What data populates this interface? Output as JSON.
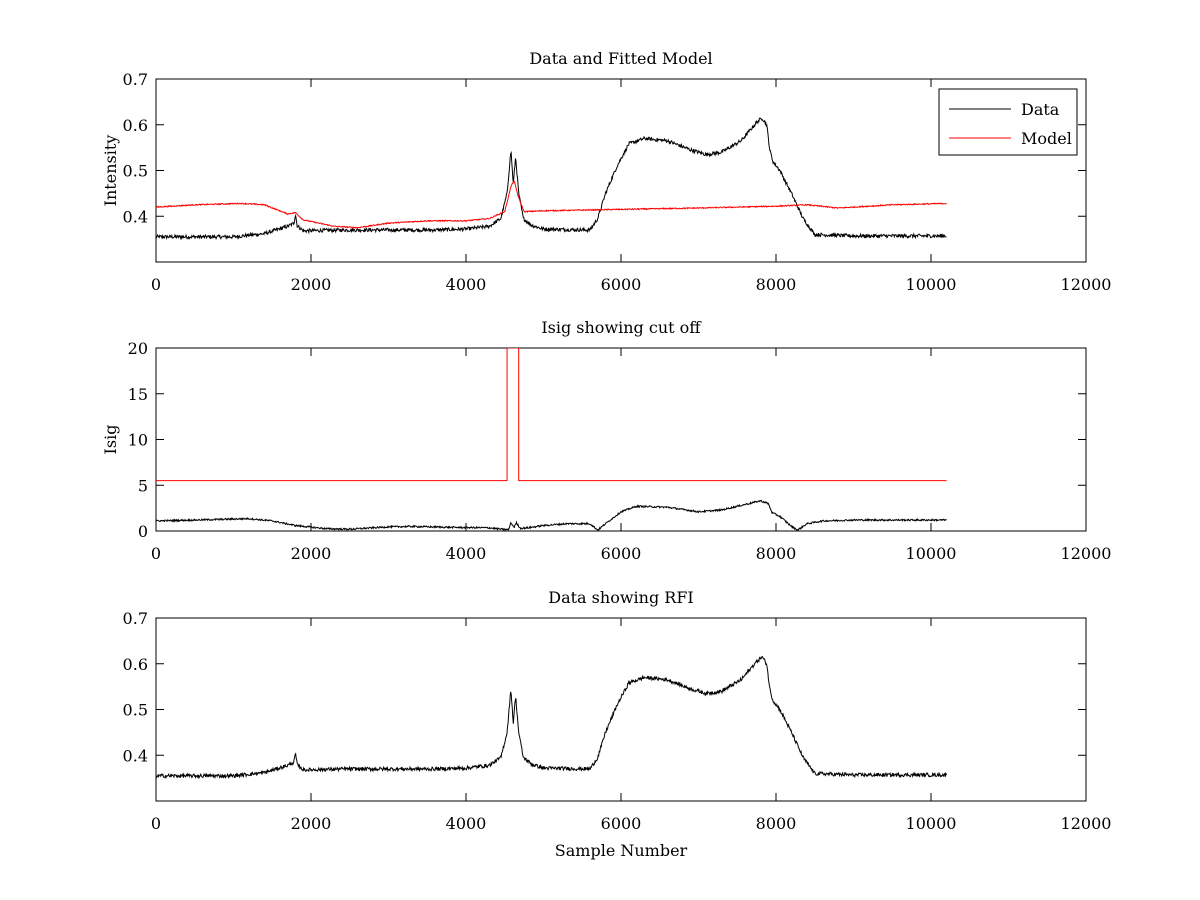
{
  "chart_data": [
    {
      "type": "line",
      "title": "Data and Fitted Model",
      "xlabel": "",
      "ylabel": "Intensity",
      "xlim": [
        0,
        12000
      ],
      "ylim": [
        0.3,
        0.7
      ],
      "xticks": [
        0,
        2000,
        4000,
        6000,
        8000,
        10000,
        12000
      ],
      "yticks": [
        0.4,
        0.5,
        0.6,
        0.7
      ],
      "ytick_labels": [
        "0.4",
        "0.5",
        "0.6",
        "0.7"
      ],
      "grid": false,
      "legend": "top-right",
      "series": [
        {
          "name": "Data",
          "color": "#000000",
          "noise": 0.004,
          "points": [
            [
              0,
              0.355
            ],
            [
              1000,
              0.355
            ],
            [
              1400,
              0.362
            ],
            [
              1700,
              0.378
            ],
            [
              1780,
              0.385
            ],
            [
              1800,
              0.405
            ],
            [
              1820,
              0.38
            ],
            [
              1900,
              0.368
            ],
            [
              2400,
              0.37
            ],
            [
              3000,
              0.37
            ],
            [
              3600,
              0.37
            ],
            [
              4000,
              0.372
            ],
            [
              4300,
              0.378
            ],
            [
              4450,
              0.395
            ],
            [
              4530,
              0.45
            ],
            [
              4580,
              0.545
            ],
            [
              4610,
              0.47
            ],
            [
              4640,
              0.53
            ],
            [
              4680,
              0.45
            ],
            [
              4740,
              0.395
            ],
            [
              4850,
              0.38
            ],
            [
              5000,
              0.372
            ],
            [
              5600,
              0.37
            ],
            [
              5700,
              0.395
            ],
            [
              5800,
              0.45
            ],
            [
              5950,
              0.51
            ],
            [
              6100,
              0.558
            ],
            [
              6300,
              0.57
            ],
            [
              6600,
              0.565
            ],
            [
              6900,
              0.545
            ],
            [
              7100,
              0.535
            ],
            [
              7300,
              0.54
            ],
            [
              7550,
              0.565
            ],
            [
              7750,
              0.605
            ],
            [
              7820,
              0.615
            ],
            [
              7880,
              0.6
            ],
            [
              7920,
              0.545
            ],
            [
              7960,
              0.52
            ],
            [
              8050,
              0.5
            ],
            [
              8200,
              0.45
            ],
            [
              8350,
              0.395
            ],
            [
              8500,
              0.36
            ],
            [
              9000,
              0.357
            ],
            [
              10200,
              0.357
            ]
          ]
        },
        {
          "name": "Model",
          "color": "#ff0000",
          "noise": 0.0012,
          "points": [
            [
              0,
              0.42
            ],
            [
              500,
              0.425
            ],
            [
              1100,
              0.428
            ],
            [
              1400,
              0.425
            ],
            [
              1700,
              0.405
            ],
            [
              1800,
              0.408
            ],
            [
              1900,
              0.392
            ],
            [
              2300,
              0.378
            ],
            [
              2600,
              0.375
            ],
            [
              3000,
              0.385
            ],
            [
              3500,
              0.39
            ],
            [
              4000,
              0.39
            ],
            [
              4300,
              0.395
            ],
            [
              4500,
              0.41
            ],
            [
              4580,
              0.465
            ],
            [
              4620,
              0.478
            ],
            [
              4680,
              0.44
            ],
            [
              4750,
              0.41
            ],
            [
              5000,
              0.412
            ],
            [
              6000,
              0.415
            ],
            [
              7000,
              0.418
            ],
            [
              8000,
              0.422
            ],
            [
              8400,
              0.425
            ],
            [
              8800,
              0.418
            ],
            [
              9500,
              0.425
            ],
            [
              10200,
              0.428
            ]
          ]
        }
      ]
    },
    {
      "type": "line",
      "title": "Isig showing cut off",
      "xlabel": "",
      "ylabel": "Isig",
      "xlim": [
        0,
        12000
      ],
      "ylim": [
        0,
        20
      ],
      "xticks": [
        0,
        2000,
        4000,
        6000,
        8000,
        10000,
        12000
      ],
      "yticks": [
        0,
        5,
        10,
        15,
        20
      ],
      "ytick_labels": [
        "0",
        "5",
        "10",
        "15",
        "20"
      ],
      "grid": false,
      "series": [
        {
          "color": "#000000",
          "noise": 0.09,
          "points": [
            [
              0,
              1.1
            ],
            [
              500,
              1.2
            ],
            [
              1200,
              1.35
            ],
            [
              1500,
              1.1
            ],
            [
              1800,
              0.6
            ],
            [
              2200,
              0.25
            ],
            [
              2500,
              0.2
            ],
            [
              3000,
              0.45
            ],
            [
              3300,
              0.5
            ],
            [
              3800,
              0.4
            ],
            [
              4300,
              0.35
            ],
            [
              4450,
              0.2
            ],
            [
              4550,
              0.15
            ],
            [
              4580,
              0.9
            ],
            [
              4620,
              0.4
            ],
            [
              4650,
              0.9
            ],
            [
              4700,
              0.3
            ],
            [
              4800,
              0.35
            ],
            [
              5000,
              0.6
            ],
            [
              5300,
              0.8
            ],
            [
              5600,
              0.8
            ],
            [
              5700,
              0.1
            ],
            [
              5800,
              0.8
            ],
            [
              6000,
              2.1
            ],
            [
              6200,
              2.7
            ],
            [
              6600,
              2.6
            ],
            [
              7000,
              2.1
            ],
            [
              7300,
              2.3
            ],
            [
              7600,
              2.9
            ],
            [
              7800,
              3.3
            ],
            [
              7900,
              3.0
            ],
            [
              7950,
              2.0
            ],
            [
              8050,
              1.6
            ],
            [
              8200,
              0.5
            ],
            [
              8280,
              0.1
            ],
            [
              8400,
              0.8
            ],
            [
              8600,
              1.1
            ],
            [
              9000,
              1.2
            ],
            [
              10200,
              1.2
            ]
          ]
        },
        {
          "color": "#ff0000",
          "noise": 0,
          "points": [
            [
              0,
              5.5
            ],
            [
              4530,
              5.5
            ],
            [
              4530,
              20
            ],
            [
              4680,
              20
            ],
            [
              4680,
              5.5
            ],
            [
              10200,
              5.5
            ]
          ]
        }
      ]
    },
    {
      "type": "line",
      "title": "Data showing RFI",
      "xlabel": "Sample Number",
      "ylabel": "",
      "xlim": [
        0,
        12000
      ],
      "ylim": [
        0.3,
        0.7
      ],
      "xticks": [
        0,
        2000,
        4000,
        6000,
        8000,
        10000,
        12000
      ],
      "yticks": [
        0.4,
        0.5,
        0.6,
        0.7
      ],
      "ytick_labels": [
        "0.4",
        "0.5",
        "0.6",
        "0.7"
      ],
      "grid": false,
      "series": [
        {
          "color": "#000000",
          "noise": 0.004,
          "points": [
            [
              0,
              0.355
            ],
            [
              1000,
              0.355
            ],
            [
              1400,
              0.362
            ],
            [
              1700,
              0.378
            ],
            [
              1780,
              0.385
            ],
            [
              1800,
              0.405
            ],
            [
              1820,
              0.38
            ],
            [
              1900,
              0.368
            ],
            [
              2400,
              0.37
            ],
            [
              3000,
              0.37
            ],
            [
              3600,
              0.37
            ],
            [
              4000,
              0.372
            ],
            [
              4300,
              0.378
            ],
            [
              4450,
              0.395
            ],
            [
              4530,
              0.45
            ],
            [
              4580,
              0.545
            ],
            [
              4610,
              0.47
            ],
            [
              4640,
              0.53
            ],
            [
              4680,
              0.45
            ],
            [
              4740,
              0.395
            ],
            [
              4850,
              0.38
            ],
            [
              5000,
              0.372
            ],
            [
              5600,
              0.37
            ],
            [
              5700,
              0.395
            ],
            [
              5800,
              0.45
            ],
            [
              5950,
              0.51
            ],
            [
              6100,
              0.558
            ],
            [
              6300,
              0.57
            ],
            [
              6600,
              0.565
            ],
            [
              6900,
              0.545
            ],
            [
              7100,
              0.535
            ],
            [
              7300,
              0.54
            ],
            [
              7550,
              0.565
            ],
            [
              7750,
              0.605
            ],
            [
              7820,
              0.615
            ],
            [
              7880,
              0.6
            ],
            [
              7920,
              0.545
            ],
            [
              7960,
              0.52
            ],
            [
              8050,
              0.5
            ],
            [
              8200,
              0.45
            ],
            [
              8350,
              0.395
            ],
            [
              8500,
              0.36
            ],
            [
              9000,
              0.357
            ],
            [
              10200,
              0.357
            ]
          ]
        }
      ]
    }
  ]
}
